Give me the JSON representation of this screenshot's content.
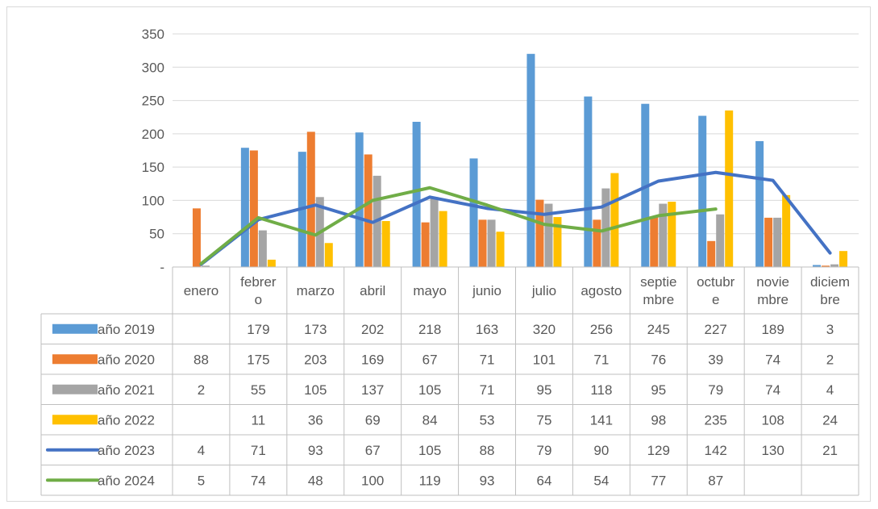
{
  "chart_data": {
    "type": "bar",
    "categories": [
      [
        "enero"
      ],
      [
        "febrer",
        "o"
      ],
      [
        "marzo"
      ],
      [
        "abril"
      ],
      [
        "mayo"
      ],
      [
        "junio"
      ],
      [
        "julio"
      ],
      [
        "agosto"
      ],
      [
        "septie",
        "mbre"
      ],
      [
        "octubr",
        "e"
      ],
      [
        "novie",
        "mbre"
      ],
      [
        "diciem",
        "bre"
      ]
    ],
    "ylim": [
      0,
      350
    ],
    "yticks": [
      0,
      50,
      100,
      150,
      200,
      250,
      300,
      350
    ],
    "ytick_labels": [
      "-",
      "50",
      "100",
      "150",
      "200",
      "250",
      "300",
      "350"
    ],
    "grid": true,
    "legend": "data-table",
    "series": [
      {
        "name": "año 2019",
        "kind": "bar",
        "color": "#5B9BD5",
        "values": [
          null,
          179,
          173,
          202,
          218,
          163,
          320,
          256,
          245,
          227,
          189,
          3
        ]
      },
      {
        "name": "año 2020",
        "kind": "bar",
        "color": "#ED7D31",
        "values": [
          88,
          175,
          203,
          169,
          67,
          71,
          101,
          71,
          76,
          39,
          74,
          2
        ]
      },
      {
        "name": "año 2021",
        "kind": "bar",
        "color": "#A5A5A5",
        "values": [
          2,
          55,
          105,
          137,
          105,
          71,
          95,
          118,
          95,
          79,
          74,
          4
        ]
      },
      {
        "name": "año 2022",
        "kind": "bar",
        "color": "#FFC000",
        "values": [
          null,
          11,
          36,
          69,
          84,
          53,
          75,
          141,
          98,
          235,
          108,
          24
        ]
      },
      {
        "name": "año 2023",
        "kind": "line",
        "color": "#4472C4",
        "values": [
          4,
          71,
          93,
          67,
          105,
          88,
          79,
          90,
          129,
          142,
          130,
          21
        ]
      },
      {
        "name": "año 2024",
        "kind": "line",
        "color": "#70AD47",
        "values": [
          5,
          74,
          48,
          100,
          119,
          93,
          64,
          54,
          77,
          87,
          null,
          null
        ]
      }
    ]
  }
}
